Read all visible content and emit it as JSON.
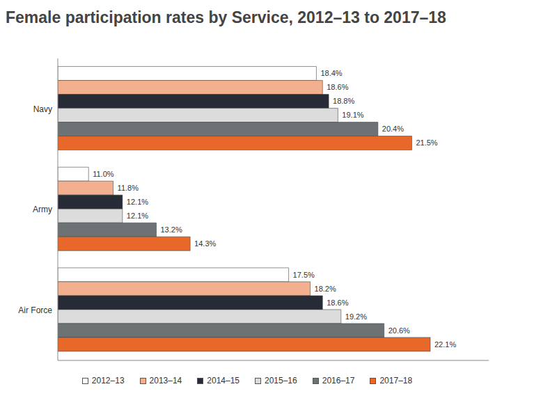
{
  "chart_data": {
    "type": "bar",
    "title": "Female participation rates by Service, 2012–13 to 2017–18",
    "orientation": "horizontal",
    "categories": [
      "Navy",
      "Army",
      "Air Force"
    ],
    "series": [
      {
        "name": "2012–13",
        "color": "#ffffff",
        "values": [
          18.4,
          11.0,
          17.5
        ],
        "value_labels": [
          "18.4%",
          "11.0%",
          "17.5%"
        ]
      },
      {
        "name": "2013–14",
        "color": "#f3b08f",
        "values": [
          18.6,
          11.8,
          18.2
        ],
        "value_labels": [
          "18.6%",
          "11.8%",
          "18.2%"
        ]
      },
      {
        "name": "2014–15",
        "color": "#272b35",
        "values": [
          18.8,
          12.1,
          18.6
        ],
        "value_labels": [
          "18.8%",
          "12.1%",
          "18.6%"
        ]
      },
      {
        "name": "2015–16",
        "color": "#dcdcdc",
        "values": [
          19.1,
          12.1,
          19.2
        ],
        "value_labels": [
          "19.1%",
          "12.1%",
          "19.2%"
        ]
      },
      {
        "name": "2016–17",
        "color": "#6d7275",
        "values": [
          20.4,
          13.2,
          20.6
        ],
        "value_labels": [
          "20.4%",
          "13.2%",
          "20.6%"
        ]
      },
      {
        "name": "2017–18",
        "color": "#e8682a",
        "values": [
          21.5,
          14.3,
          22.1
        ],
        "value_labels": [
          "21.5%",
          "14.3%",
          "22.1%"
        ]
      }
    ],
    "xlim": [
      10,
      24
    ],
    "grid": false,
    "legend": "bottom",
    "data_labels": true,
    "tick_labels": "y"
  }
}
